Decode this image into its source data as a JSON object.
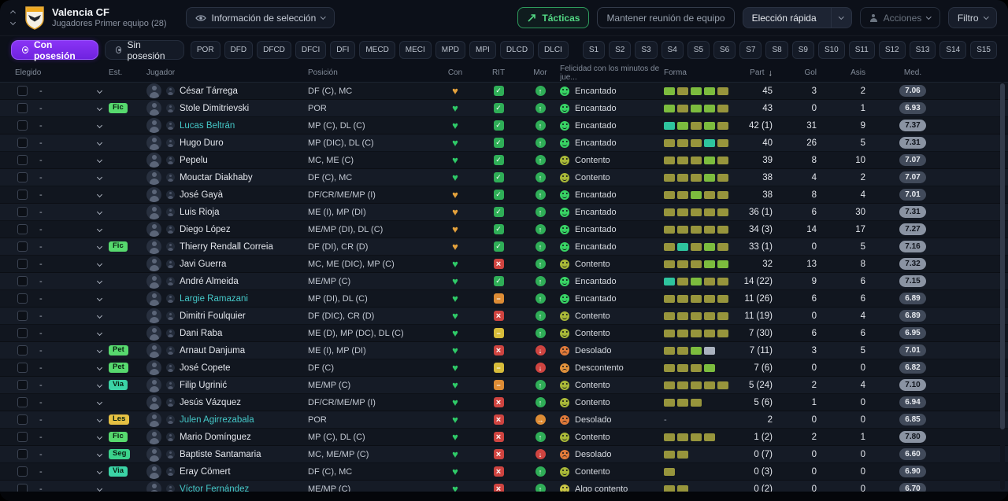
{
  "topbar": {
    "club": "Valencia CF",
    "squad": "Jugadores Primer equipo (28)",
    "selection_info": "Información de selección",
    "tacticas": "Tácticas",
    "reunion": "Mantener reunión de equipo",
    "eleccion": "Elección rápida",
    "acciones": "Acciones",
    "filtro": "Filtro"
  },
  "tabs": [
    {
      "label": "Con posesión",
      "active": true
    },
    {
      "label": "Sin posesión",
      "active": false
    }
  ],
  "filters": {
    "positions": [
      "POR",
      "DFD",
      "DFCD",
      "DFCI",
      "DFI",
      "MECD",
      "MECI",
      "MPD",
      "MPI",
      "DLCD",
      "DLCI"
    ],
    "sets": [
      "S1",
      "S2",
      "S3",
      "S4",
      "S5",
      "S6",
      "S7",
      "S8",
      "S9",
      "S10",
      "S11",
      "S12",
      "S13",
      "S14",
      "S15"
    ]
  },
  "table": {
    "select_value": "-",
    "sort_column": "Part",
    "headers": {
      "elegido": "Elegido",
      "est": "Est.",
      "jugador": "Jugador",
      "posicion": "Posición",
      "con": "Con",
      "rit": "RIT",
      "mor": "Mor",
      "felicidad": "Felicidad con los minutos de jue...",
      "forma": "Forma",
      "part": "Part",
      "gol": "Gol",
      "asis": "Asis",
      "med": "Med."
    },
    "rows": [
      {
        "est": "",
        "name": "César Tárrega",
        "loan": false,
        "pos": "DF (C), MC",
        "con": "orange",
        "rit": "ok",
        "mor": "up",
        "hap": "Encantado",
        "forma": [
          "green",
          "olive",
          "green",
          "green",
          "olive"
        ],
        "part": "45",
        "gol": "3",
        "asis": "2",
        "med": "7.06"
      },
      {
        "est": "Fic",
        "name": "Stole Dimitrievski",
        "loan": false,
        "pos": "POR",
        "con": "green",
        "rit": "ok",
        "mor": "up",
        "hap": "Encantado",
        "forma": [
          "green",
          "olive",
          "green",
          "green",
          "olive"
        ],
        "part": "43",
        "gol": "0",
        "asis": "1",
        "med": "6.93"
      },
      {
        "est": "",
        "name": "Lucas Beltrán",
        "loan": true,
        "pos": "MP (C), DL (C)",
        "con": "green",
        "rit": "ok",
        "mor": "up",
        "hap": "Encantado",
        "forma": [
          "teal",
          "green",
          "olive",
          "green",
          "olive"
        ],
        "part": "42 (1)",
        "gol": "31",
        "asis": "9",
        "med": "7.37"
      },
      {
        "est": "",
        "name": "Hugo Duro",
        "loan": false,
        "pos": "MP (DIC), DL (C)",
        "con": "green",
        "rit": "ok",
        "mor": "up",
        "hap": "Encantado",
        "forma": [
          "olive",
          "olive",
          "olive",
          "teal",
          "olive"
        ],
        "part": "40",
        "gol": "26",
        "asis": "5",
        "med": "7.31"
      },
      {
        "est": "",
        "name": "Pepelu",
        "loan": false,
        "pos": "MC, ME (C)",
        "con": "green",
        "rit": "ok",
        "mor": "up",
        "hap": "Contento",
        "forma": [
          "olive",
          "olive",
          "olive",
          "green",
          "olive"
        ],
        "part": "39",
        "gol": "8",
        "asis": "10",
        "med": "7.07"
      },
      {
        "est": "",
        "name": "Mouctar Diakhaby",
        "loan": false,
        "pos": "DF (C), MC",
        "con": "green",
        "rit": "ok",
        "mor": "up",
        "hap": "Contento",
        "forma": [
          "olive",
          "olive",
          "olive",
          "green",
          "olive"
        ],
        "part": "38",
        "gol": "4",
        "asis": "2",
        "med": "7.07"
      },
      {
        "est": "",
        "name": "José Gayà",
        "loan": false,
        "pos": "DF/CR/ME/MP (I)",
        "con": "orange",
        "rit": "ok",
        "mor": "up",
        "hap": "Encantado",
        "forma": [
          "olive",
          "olive",
          "green",
          "olive",
          "olive"
        ],
        "part": "38",
        "gol": "8",
        "asis": "4",
        "med": "7.01"
      },
      {
        "est": "",
        "name": "Luis Rioja",
        "loan": false,
        "pos": "ME (I), MP (DI)",
        "con": "orange",
        "rit": "ok",
        "mor": "up",
        "hap": "Encantado",
        "forma": [
          "olive",
          "olive",
          "olive",
          "olive",
          "olive"
        ],
        "part": "36 (1)",
        "gol": "6",
        "asis": "30",
        "med": "7.31"
      },
      {
        "est": "",
        "name": "Diego López",
        "loan": false,
        "pos": "ME/MP (DI), DL (C)",
        "con": "orange",
        "rit": "ok",
        "mor": "up",
        "hap": "Encantado",
        "forma": [
          "olive",
          "olive",
          "olive",
          "olive",
          "olive"
        ],
        "part": "34 (3)",
        "gol": "14",
        "asis": "17",
        "med": "7.27"
      },
      {
        "est": "Fic",
        "name": "Thierry Rendall Correia",
        "loan": false,
        "pos": "DF (DI), CR (D)",
        "con": "orange",
        "rit": "ok",
        "mor": "up",
        "hap": "Encantado",
        "forma": [
          "olive",
          "teal",
          "olive",
          "green",
          "olive"
        ],
        "part": "33 (1)",
        "gol": "0",
        "asis": "5",
        "med": "7.16"
      },
      {
        "est": "",
        "name": "Javi Guerra",
        "loan": false,
        "pos": "MC, ME (DIC), MP (C)",
        "con": "green",
        "rit": "bad",
        "mor": "up",
        "hap": "Contento",
        "forma": [
          "olive",
          "olive",
          "olive",
          "green",
          "green"
        ],
        "part": "32",
        "gol": "13",
        "asis": "8",
        "med": "7.32"
      },
      {
        "est": "",
        "name": "André Almeida",
        "loan": false,
        "pos": "ME/MP (C)",
        "con": "green",
        "rit": "ok",
        "mor": "up",
        "hap": "Encantado",
        "forma": [
          "teal",
          "olive",
          "green",
          "olive",
          "olive"
        ],
        "part": "14 (22)",
        "gol": "9",
        "asis": "6",
        "med": "7.15"
      },
      {
        "est": "",
        "name": "Largie Ramazani",
        "loan": true,
        "pos": "MP (DI), DL (C)",
        "con": "green",
        "rit": "warn",
        "mor": "up",
        "hap": "Encantado",
        "forma": [
          "olive",
          "olive",
          "olive",
          "olive",
          "olive"
        ],
        "part": "11 (26)",
        "gol": "6",
        "asis": "6",
        "med": "6.89"
      },
      {
        "est": "",
        "name": "Dimitri Foulquier",
        "loan": false,
        "pos": "DF (DIC), CR (D)",
        "con": "green",
        "rit": "bad",
        "mor": "up",
        "hap": "Contento",
        "forma": [
          "olive",
          "olive",
          "olive",
          "olive",
          "olive"
        ],
        "part": "11 (19)",
        "gol": "0",
        "asis": "4",
        "med": "6.89"
      },
      {
        "est": "",
        "name": "Dani Raba",
        "loan": false,
        "pos": "ME (D), MP (DC), DL (C)",
        "con": "green",
        "rit": "low",
        "mor": "up",
        "hap": "Contento",
        "forma": [
          "olive",
          "olive",
          "olive",
          "olive",
          "olive"
        ],
        "part": "7 (30)",
        "gol": "6",
        "asis": "6",
        "med": "6.95"
      },
      {
        "est": "Pet",
        "name": "Arnaut Danjuma",
        "loan": false,
        "pos": "ME (I), MP (DI)",
        "con": "green",
        "rit": "bad",
        "mor": "down",
        "hap": "Desolado",
        "forma": [
          "olive",
          "olive",
          "green",
          "gray"
        ],
        "part": "7 (11)",
        "gol": "3",
        "asis": "5",
        "med": "7.01"
      },
      {
        "est": "Pet",
        "name": "José Copete",
        "loan": false,
        "pos": "DF (C)",
        "con": "green",
        "rit": "low",
        "mor": "down",
        "hap": "Descontento",
        "forma": [
          "olive",
          "olive",
          "olive",
          "green"
        ],
        "part": "7 (6)",
        "gol": "0",
        "asis": "0",
        "med": "6.82"
      },
      {
        "est": "Via",
        "name": "Filip Ugrinić",
        "loan": false,
        "pos": "ME/MP (C)",
        "con": "green",
        "rit": "warn",
        "mor": "up",
        "hap": "Contento",
        "forma": [
          "olive",
          "olive",
          "olive",
          "olive",
          "olive"
        ],
        "part": "5 (24)",
        "gol": "2",
        "asis": "4",
        "med": "7.10"
      },
      {
        "est": "",
        "name": "Jesús Vázquez",
        "loan": false,
        "pos": "DF/CR/ME/MP (I)",
        "con": "green",
        "rit": "bad",
        "mor": "up",
        "hap": "Contento",
        "forma": [
          "olive",
          "olive",
          "olive"
        ],
        "part": "5 (6)",
        "gol": "1",
        "asis": "0",
        "med": "6.94"
      },
      {
        "est": "Les",
        "name": "Julen Agirrezabala",
        "loan": true,
        "pos": "POR",
        "con": "green",
        "rit": "bad",
        "mor": "mid",
        "hap": "Desolado",
        "forma": [],
        "part": "2",
        "gol": "0",
        "asis": "0",
        "med": "6.85"
      },
      {
        "est": "Fic",
        "name": "Mario Domínguez",
        "loan": false,
        "pos": "MP (C), DL (C)",
        "con": "green",
        "rit": "bad",
        "mor": "up",
        "hap": "Contento",
        "forma": [
          "olive",
          "olive",
          "olive",
          "olive"
        ],
        "part": "1 (2)",
        "gol": "2",
        "asis": "1",
        "med": "7.80"
      },
      {
        "est": "Seg",
        "name": "Baptiste Santamaria",
        "loan": false,
        "pos": "MC, ME/MP (C)",
        "con": "green",
        "rit": "bad",
        "mor": "down",
        "hap": "Desolado",
        "forma": [
          "olive",
          "olive"
        ],
        "part": "0 (7)",
        "gol": "0",
        "asis": "0",
        "med": "6.60"
      },
      {
        "est": "Via",
        "name": "Eray Cömert",
        "loan": false,
        "pos": "DF (C), MC",
        "con": "green",
        "rit": "bad",
        "mor": "up",
        "hap": "Contento",
        "forma": [
          "olive"
        ],
        "part": "0 (3)",
        "gol": "0",
        "asis": "0",
        "med": "6.90"
      },
      {
        "est": "",
        "name": "Víctor Fernández",
        "loan": true,
        "pos": "ME/MP (C)",
        "con": "green",
        "rit": "bad",
        "mor": "up",
        "hap": "Algo contento",
        "forma": [
          "olive",
          "olive"
        ],
        "part": "0 (2)",
        "gol": "0",
        "asis": "0",
        "med": "6.70",
        "partial": true
      }
    ]
  },
  "colors": {
    "accent_purple": "#7c2bf2",
    "accent_green": "#35d05f",
    "est": {
      "Fic": "#57d96e",
      "Pet": "#57d96e",
      "Via": "#3bd3a6",
      "Les": "#e5c043",
      "Seg": "#3bd38c"
    },
    "forma": {
      "olive": "#97953c",
      "green": "#7cbc3e",
      "teal": "#2ec49e",
      "gray": "#aab2bf"
    },
    "happiness": {
      "Encantado": {
        "color": "#38d364",
        "mouth": "smile"
      },
      "Contento": {
        "color": "#a9b838",
        "mouth": "smile"
      },
      "Algo contento": {
        "color": "#c9c545",
        "mouth": "smile"
      },
      "Descontento": {
        "color": "#e2923c",
        "mouth": "frown"
      },
      "Desolado": {
        "color": "#e07a3a",
        "mouth": "frown"
      }
    }
  }
}
